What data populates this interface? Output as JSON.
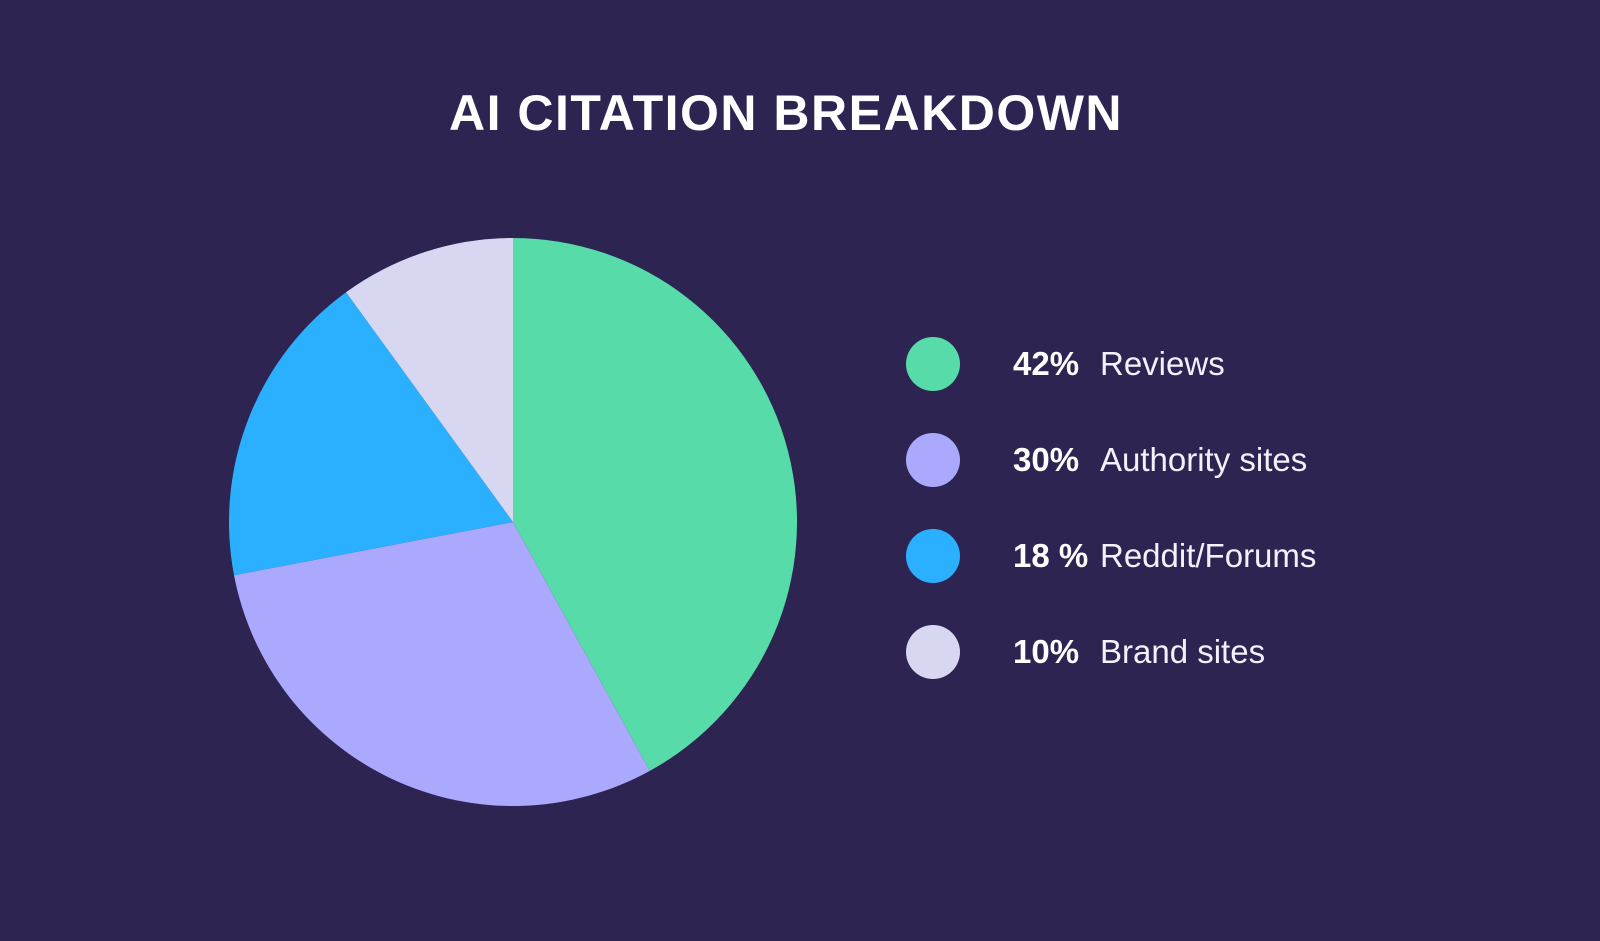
{
  "page": {
    "background_color": "#2D2452"
  },
  "title": "AI CITATION BREAKDOWN",
  "chart_data": {
    "type": "pie",
    "title": "AI CITATION BREAKDOWN",
    "start_angle_deg": 0,
    "direction": "clockwise",
    "legend_position": "right",
    "slices": [
      {
        "label": "Reviews",
        "value": 42,
        "pct_label": "42%",
        "color": "#57DBA8"
      },
      {
        "label": "Authority sites",
        "value": 30,
        "pct_label": "30%",
        "color": "#ABA9FE"
      },
      {
        "label": "Reddit/Forums",
        "value": 18,
        "pct_label": "18 %",
        "color": "#2BAFFF"
      },
      {
        "label": "Brand sites",
        "value": 10,
        "pct_label": "10%",
        "color": "#D8D7F2"
      }
    ]
  }
}
